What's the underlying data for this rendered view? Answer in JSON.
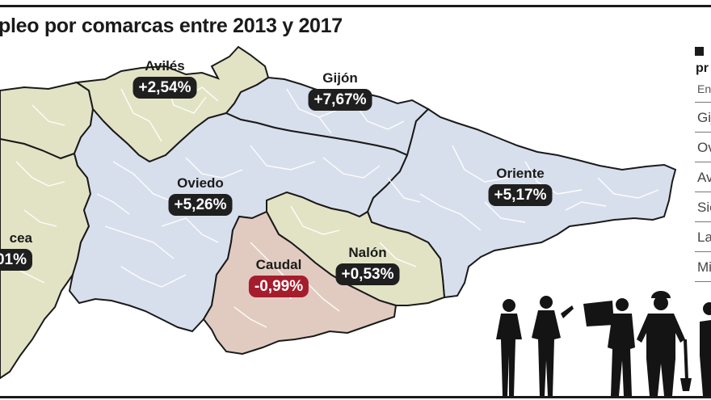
{
  "title": "pleo por comarcas entre 2013 y 2017",
  "regions": [
    {
      "key": "aviles",
      "name": "Avilés",
      "value": "+2,54%",
      "negative": false
    },
    {
      "key": "gijon",
      "name": "Gijón",
      "value": "+7,67%",
      "negative": false
    },
    {
      "key": "oviedo",
      "name": "Oviedo",
      "value": "+5,26%",
      "negative": false
    },
    {
      "key": "oriente",
      "name": "Oriente",
      "value": "+5,17%",
      "negative": false
    },
    {
      "key": "caudal",
      "name": "Caudal",
      "value": "-0,99%",
      "negative": true
    },
    {
      "key": "nalon",
      "name": "Nalón",
      "value": "+0,53%",
      "negative": false
    },
    {
      "key": "narcea",
      "name": "cea",
      "value": "01%",
      "negative": false
    }
  ],
  "legend": {
    "head": "pr",
    "sub": "En",
    "rows": [
      "Gij",
      "Ov",
      "Av",
      "Sie",
      "La",
      "Mi"
    ]
  },
  "colors": {
    "blue_region": "#d8dfec",
    "green_region": "#e2e3c4",
    "pink_region": "#e1cbc0",
    "border": "#1a1a1a",
    "pill": "#1f1f1f",
    "pill_negative": "#a51d2d"
  }
}
